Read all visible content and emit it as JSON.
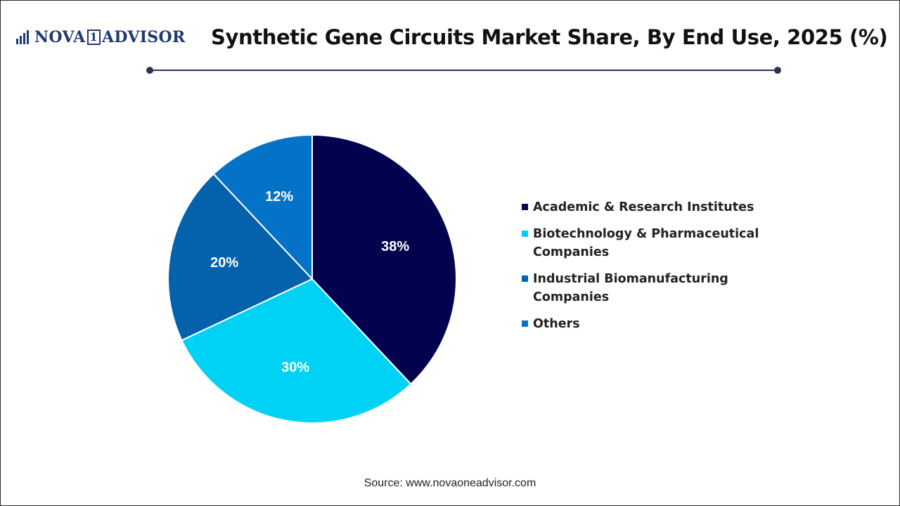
{
  "header": {
    "logo_text_left": "NOVA",
    "logo_text_one": "1",
    "logo_text_right": "ADVISOR",
    "title": "Synthetic Gene Circuits Market Share, By End Use, 2025 (%)"
  },
  "colors": {
    "academic": "#02024f",
    "biotech": "#00d2f6",
    "industrial": "#0362ab",
    "others": "#0473c7",
    "rule": "#2a3357",
    "logo": "#1f3a73"
  },
  "chart_data": {
    "type": "pie",
    "title": "Synthetic Gene Circuits Market Share, By End Use, 2025 (%)",
    "legend_position": "right",
    "slices": [
      {
        "name": "Academic & Research Institutes",
        "value": 38,
        "label": "38%",
        "color": "#02024f"
      },
      {
        "name": "Biotechnology & Pharmaceutical Companies",
        "value": 30,
        "label": "30%",
        "color": "#00d2f6"
      },
      {
        "name": "Industrial Biomanufacturing Companies",
        "value": 20,
        "label": "20%",
        "color": "#0362ab"
      },
      {
        "name": "Others",
        "value": 12,
        "label": "12%",
        "color": "#0473c7"
      }
    ]
  },
  "footer": {
    "source": "Source: www.novaoneadvisor.com"
  }
}
